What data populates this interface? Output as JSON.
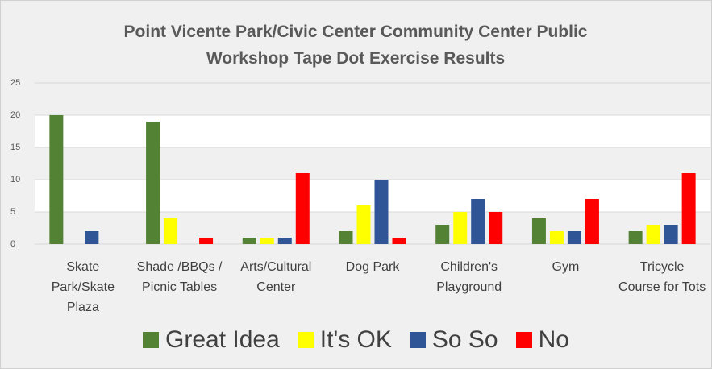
{
  "chart_data": {
    "type": "bar",
    "title": "Point Vicente Park/Civic Center Community Center Public Workshop Tape Dot Exercise Results",
    "categories": [
      "Skate Park/Skate Plaza",
      "Shade /BBQs / Picnic Tables",
      "Arts/Cultural Center",
      "Dog Park",
      "Children's Playground",
      "Gym",
      "Tricycle Course for Tots"
    ],
    "series": [
      {
        "name": "Great Idea",
        "color": "#548235",
        "values": [
          20,
          19,
          1,
          2,
          3,
          4,
          2
        ]
      },
      {
        "name": "It's OK",
        "color": "#ffff00",
        "values": [
          0,
          4,
          1,
          6,
          5,
          2,
          3
        ]
      },
      {
        "name": "So So",
        "color": "#2f5597",
        "values": [
          2,
          0,
          1,
          10,
          7,
          2,
          3
        ]
      },
      {
        "name": "No",
        "color": "#ff0000",
        "values": [
          0,
          1,
          11,
          1,
          5,
          7,
          11
        ]
      }
    ],
    "ylim": [
      0,
      25
    ],
    "yticks": [
      0,
      5,
      10,
      15,
      20,
      25
    ],
    "grid": true,
    "legend": "bottom"
  }
}
